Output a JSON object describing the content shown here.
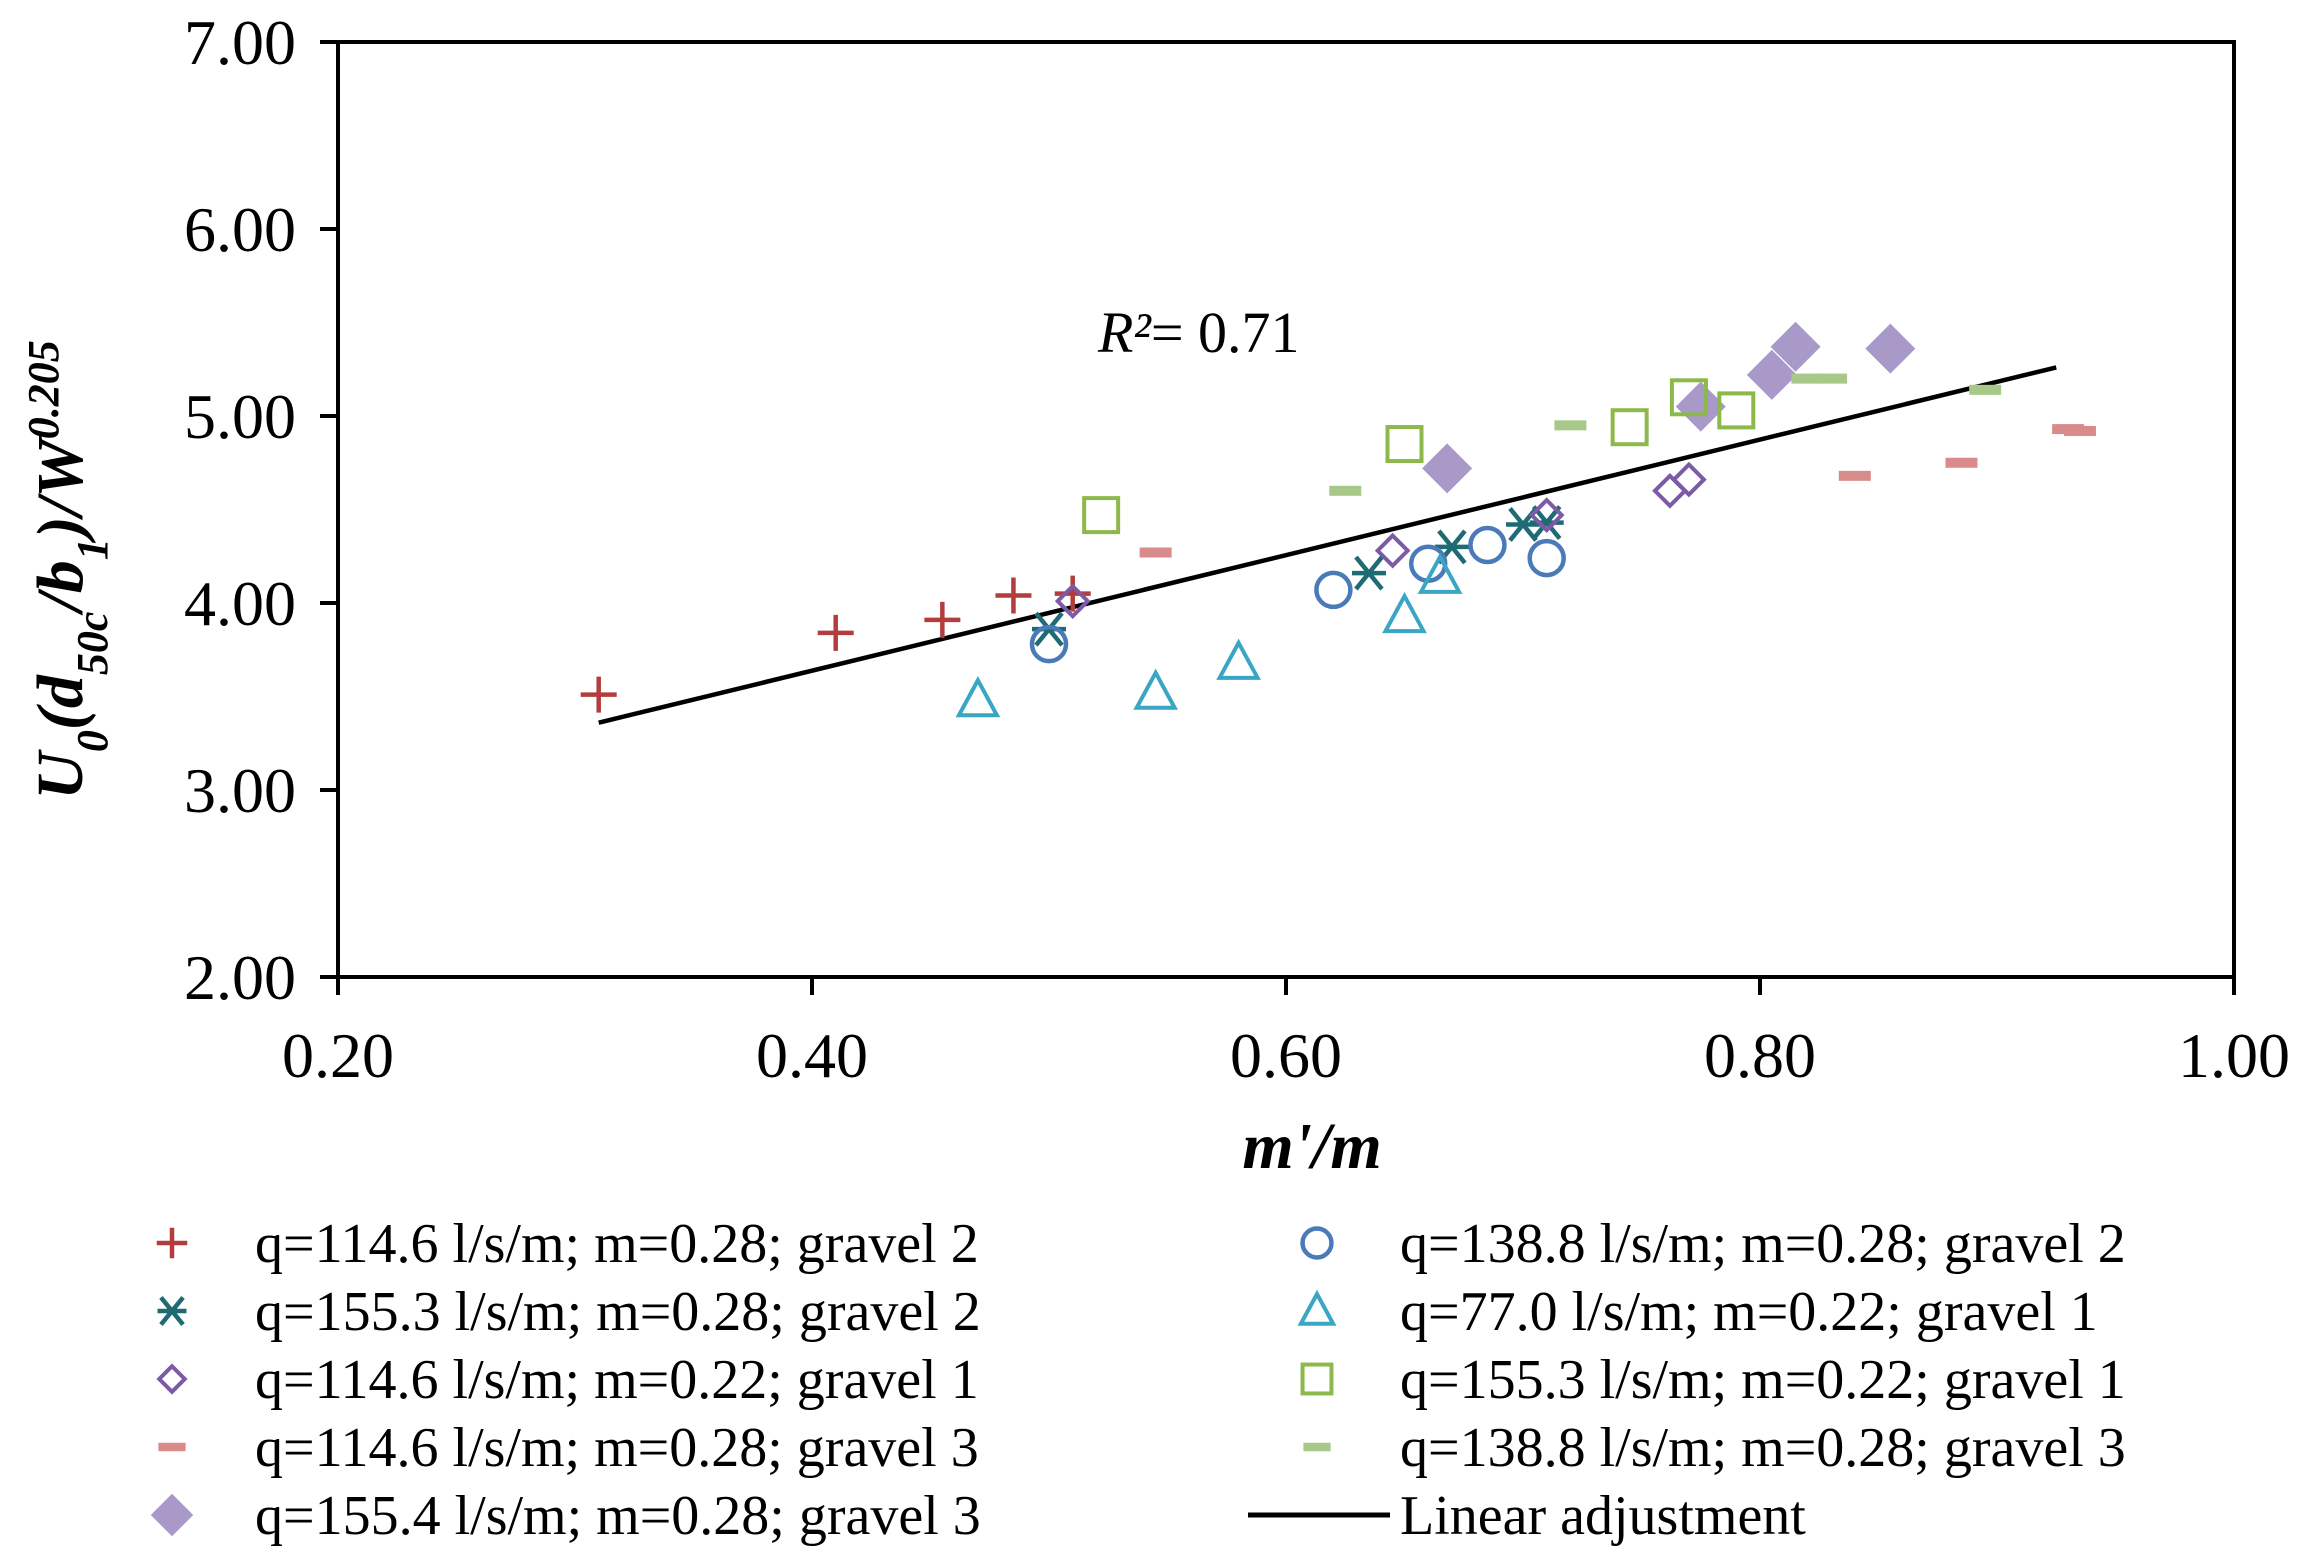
{
  "chart_data": {
    "type": "scatter",
    "title": "",
    "xlabel": "m'/m",
    "ylabel_parts": {
      "u": "U",
      "u_sub": "0",
      "open": "(d",
      "d_sub": "50c",
      "slash": "/b",
      "b_sub": "1",
      "close": ")/W",
      "w_sup": "0.205"
    },
    "xlim": [
      0.2,
      1.0
    ],
    "ylim": [
      2.0,
      7.0
    ],
    "x_ticks": [
      "0.20",
      "0.40",
      "0.60",
      "0.80",
      "1.00"
    ],
    "y_ticks": [
      "2.00",
      "3.00",
      "4.00",
      "5.00",
      "6.00",
      "7.00"
    ],
    "annotation": {
      "r_label": "R²",
      "eq_text": "= 0.71"
    },
    "series": [
      {
        "name": "q=114.6 l/s/m; m=0.28; gravel 2",
        "marker": "plus",
        "color": "#b43c3c",
        "points": [
          [
            0.31,
            3.51
          ],
          [
            0.41,
            3.84
          ],
          [
            0.455,
            3.91
          ],
          [
            0.485,
            4.04
          ],
          [
            0.51,
            4.05
          ]
        ]
      },
      {
        "name": "q=155.3 l/s/m; m=0.28; gravel 2",
        "marker": "star",
        "color": "#1f6b73",
        "points": [
          [
            0.5,
            3.86
          ],
          [
            0.635,
            4.16
          ],
          [
            0.67,
            4.3
          ],
          [
            0.7,
            4.42
          ],
          [
            0.71,
            4.43
          ]
        ]
      },
      {
        "name": "q=114.6 l/s/m; m=0.22; gravel 1",
        "marker": "diamond-open",
        "color": "#7b5aa6",
        "points": [
          [
            0.51,
            4.01
          ],
          [
            0.645,
            4.28
          ],
          [
            0.71,
            4.47
          ],
          [
            0.762,
            4.6
          ],
          [
            0.77,
            4.66
          ]
        ]
      },
      {
        "name": "q=114.6 l/s/m; m=0.28; gravel 3",
        "marker": "dash",
        "color": "#d98a8a",
        "points": [
          [
            0.545,
            4.27
          ],
          [
            0.84,
            4.68
          ],
          [
            0.885,
            4.75
          ],
          [
            0.93,
            4.93
          ],
          [
            0.935,
            4.92
          ]
        ]
      },
      {
        "name": "q=155.4 l/s/m; m=0.28; gravel 3",
        "marker": "diamond-filled",
        "color": "#a999c9",
        "points": [
          [
            0.668,
            4.72
          ],
          [
            0.775,
            5.05
          ],
          [
            0.805,
            5.22
          ],
          [
            0.815,
            5.37
          ],
          [
            0.855,
            5.36
          ]
        ]
      },
      {
        "name": "q=138.8 l/s/m; m=0.28; gravel 2",
        "marker": "circle",
        "color": "#4a7ab8",
        "points": [
          [
            0.5,
            3.78
          ],
          [
            0.62,
            4.07
          ],
          [
            0.66,
            4.21
          ],
          [
            0.685,
            4.31
          ],
          [
            0.71,
            4.24
          ]
        ]
      },
      {
        "name": "q=77.0 l/s/m; m=0.22; gravel 1",
        "marker": "triangle",
        "color": "#3aa6c4",
        "points": [
          [
            0.47,
            3.48
          ],
          [
            0.545,
            3.52
          ],
          [
            0.58,
            3.68
          ],
          [
            0.65,
            3.93
          ],
          [
            0.665,
            4.14
          ]
        ]
      },
      {
        "name": "q=155.3 l/s/m; m=0.22; gravel 1",
        "marker": "square",
        "color": "#8db84a",
        "points": [
          [
            0.522,
            4.47
          ],
          [
            0.65,
            4.85
          ],
          [
            0.745,
            4.94
          ],
          [
            0.77,
            5.1
          ],
          [
            0.79,
            5.03
          ]
        ]
      },
      {
        "name": "q=138.8 l/s/m; m=0.28; gravel 3",
        "marker": "dash",
        "color": "#a8c88a",
        "points": [
          [
            0.625,
            4.6
          ],
          [
            0.72,
            4.95
          ],
          [
            0.82,
            5.2
          ],
          [
            0.83,
            5.2
          ],
          [
            0.895,
            5.14
          ]
        ]
      }
    ],
    "trendline": {
      "name": "Linear adjustment",
      "color": "#000000",
      "points": [
        [
          0.31,
          3.36
        ],
        [
          0.925,
          5.26
        ]
      ]
    },
    "legend_position": "bottom",
    "grid": false
  }
}
